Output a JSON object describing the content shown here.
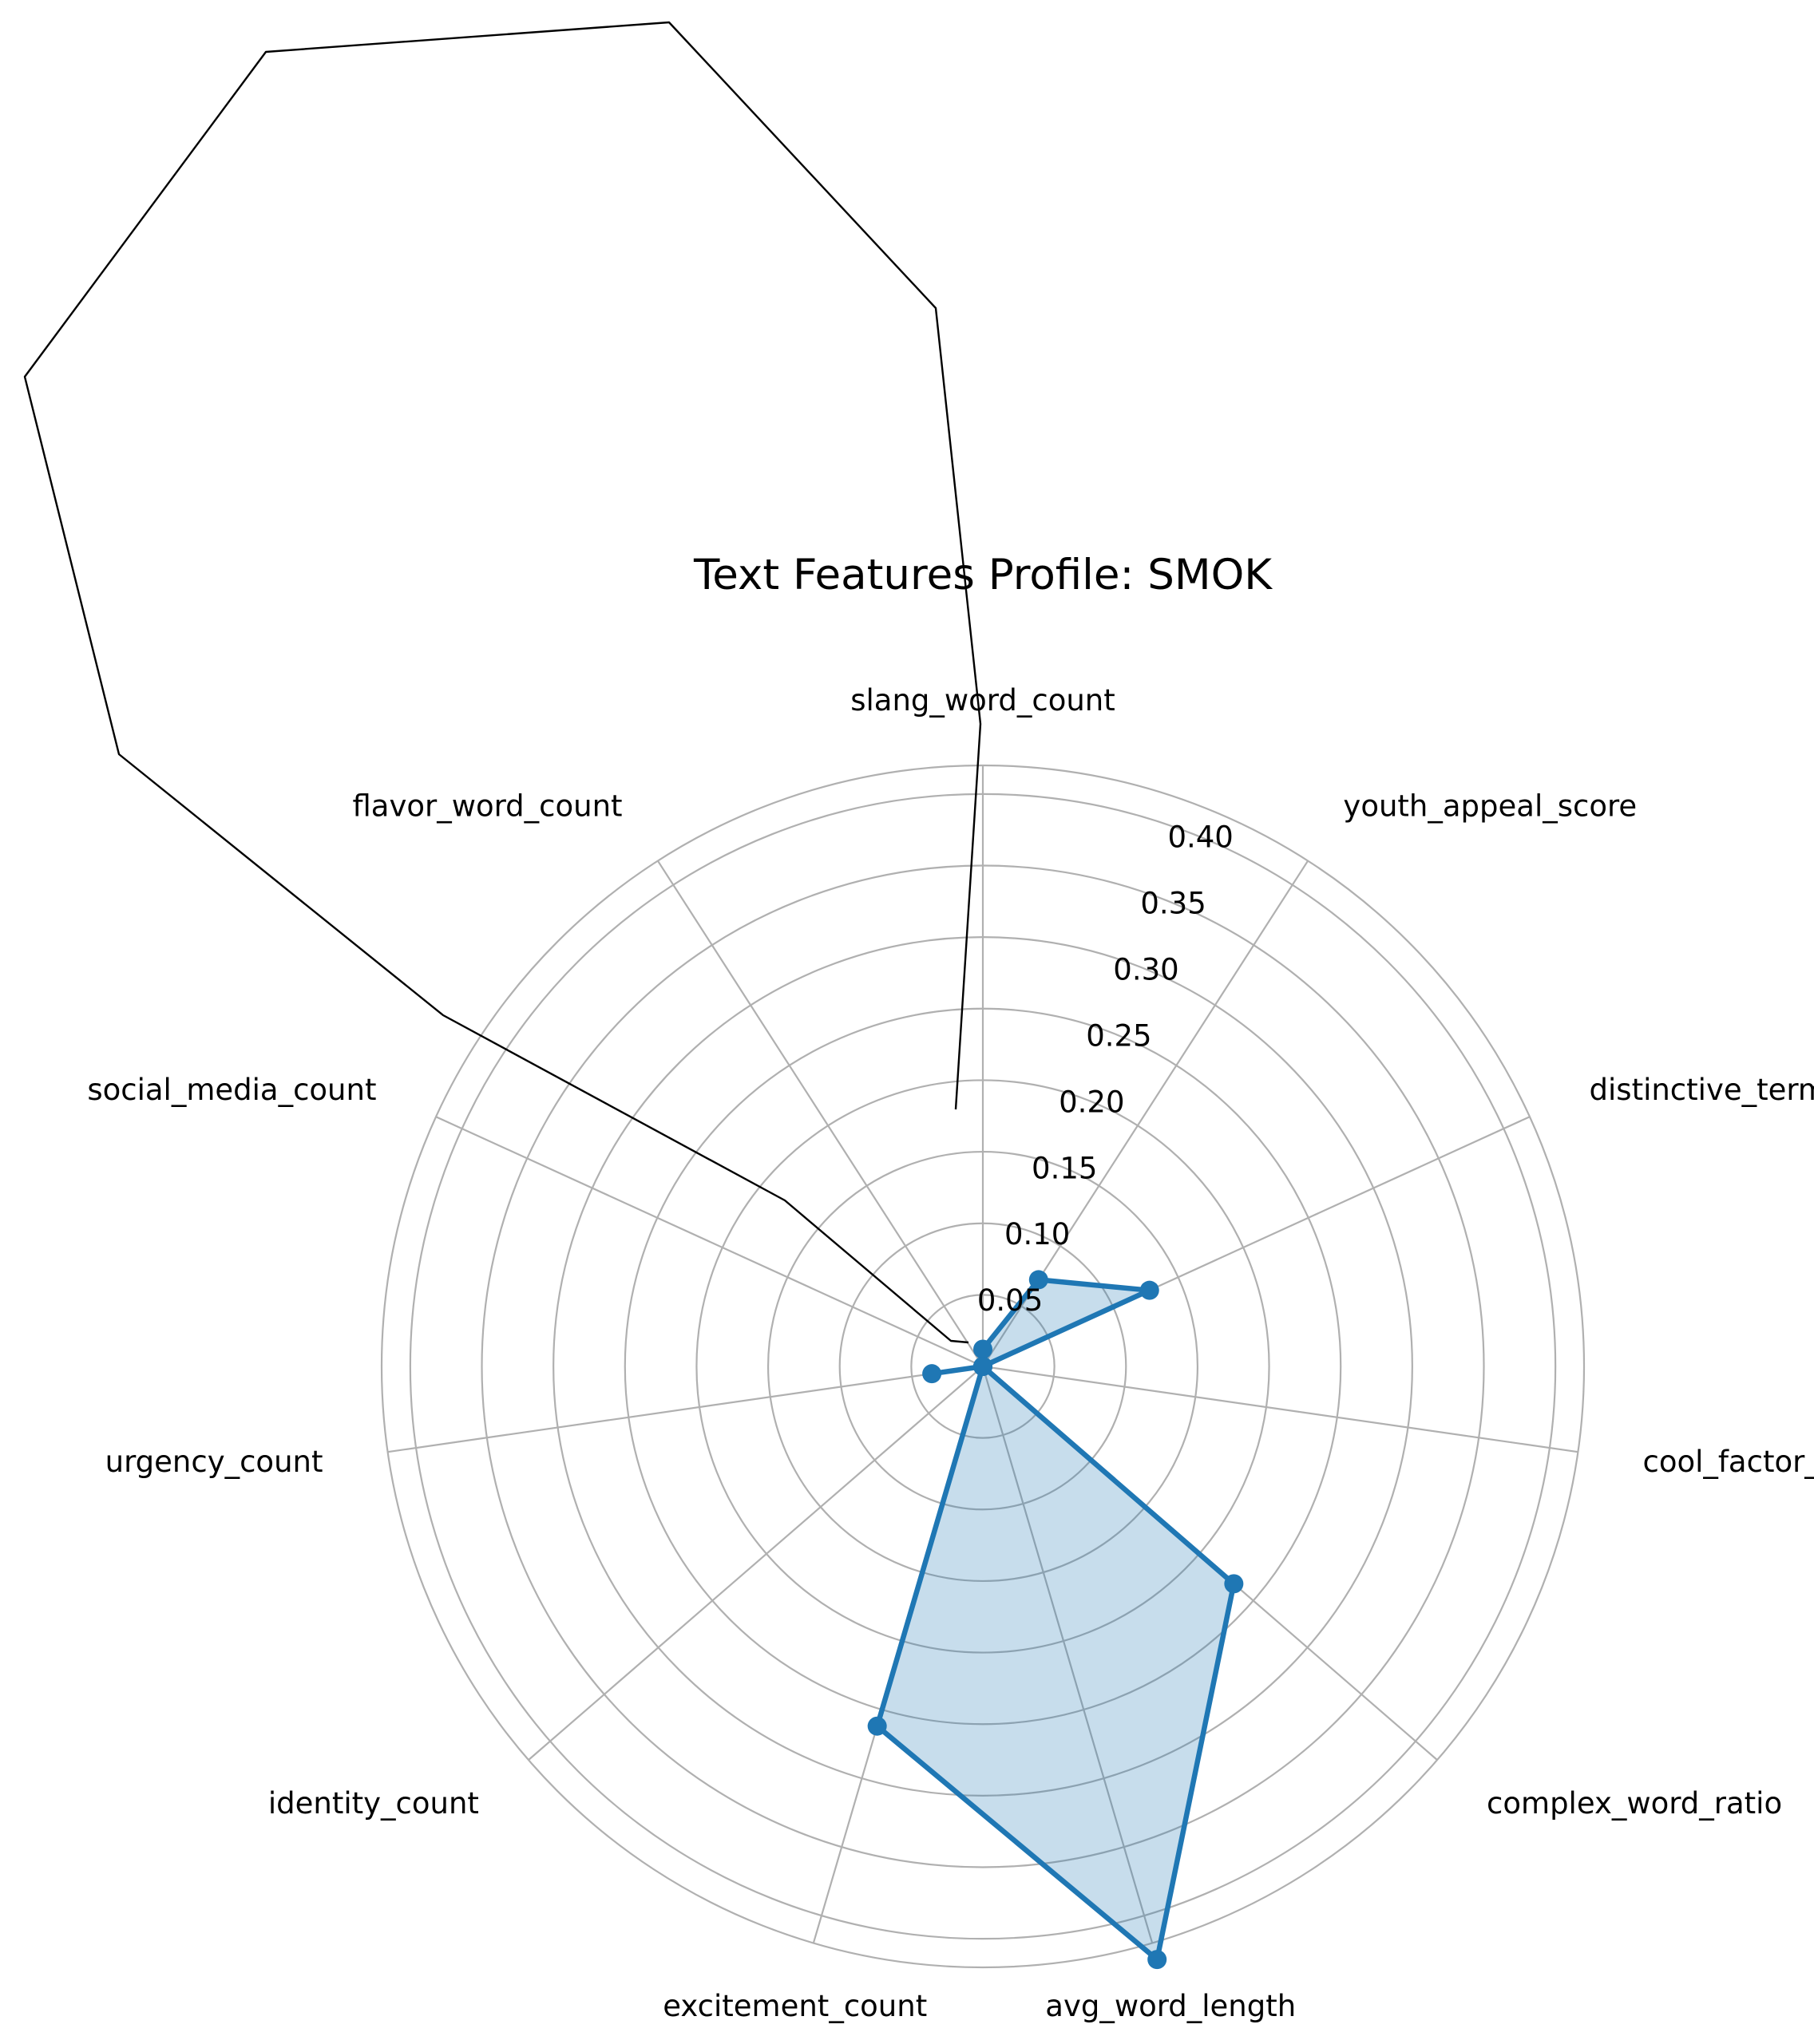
{
  "chart_data": {
    "type": "radar",
    "title": "Text Features Profile: SMOK",
    "categories": [
      "slang_word_count",
      "youth_appeal_score",
      "distinctive_term_score",
      "cool_factor_count",
      "complex_word_ratio",
      "avg_word_length",
      "excitement_count",
      "identity_count",
      "urgency_count",
      "social_media_count",
      "flavor_word_count"
    ],
    "series": [
      {
        "values": [
          0.012,
          0.072,
          0.128,
          0.0,
          0.232,
          0.432,
          0.262,
          0.0,
          0.036,
          0.0,
          0.0
        ],
        "color": "#1f77b4",
        "fill_opacity": 0.25
      }
    ],
    "rlim": [
      0,
      0.42
    ],
    "rticks": [
      0.05,
      0.1,
      0.15,
      0.2,
      0.25,
      0.3,
      0.35,
      0.4
    ],
    "rtick_labels": [
      "0.05",
      "0.10",
      "0.15",
      "0.20",
      "0.25",
      "0.30",
      "0.35",
      "0.40"
    ],
    "grid": true,
    "grid_color": "#b0b0b0",
    "outline_color": "#000000"
  }
}
